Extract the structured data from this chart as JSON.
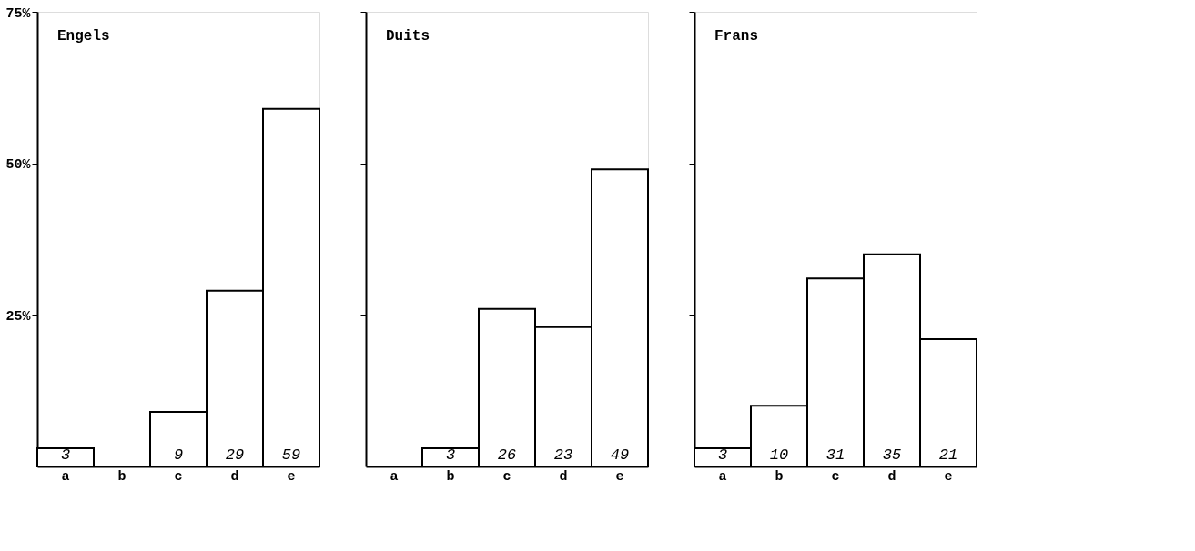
{
  "chart_data": [
    {
      "type": "bar",
      "title": "Engels",
      "categories": [
        "a",
        "b",
        "c",
        "d",
        "e"
      ],
      "values": [
        3,
        null,
        9,
        29,
        59
      ],
      "value_labels": [
        "3",
        null,
        "9",
        "29",
        "59"
      ],
      "ylim": [
        0,
        75
      ],
      "yticks": [
        {
          "value": 25,
          "label": "25%"
        },
        {
          "value": 50,
          "label": "50%"
        },
        {
          "value": 75,
          "label": "75%"
        }
      ],
      "color": "#ffffff",
      "grid": false
    },
    {
      "type": "bar",
      "title": "Duits",
      "categories": [
        "a",
        "b",
        "c",
        "d",
        "e"
      ],
      "values": [
        null,
        3,
        26,
        23,
        49
      ],
      "value_labels": [
        null,
        "3",
        "26",
        "23",
        "49"
      ],
      "ylim": [
        0,
        75
      ],
      "yticks": [
        {
          "value": 25,
          "label": null
        },
        {
          "value": 50,
          "label": null
        },
        {
          "value": 75,
          "label": null
        }
      ],
      "color": "#ffffff",
      "grid": false
    },
    {
      "type": "bar",
      "title": "Frans",
      "categories": [
        "a",
        "b",
        "c",
        "d",
        "e"
      ],
      "values": [
        3,
        10,
        31,
        35,
        21
      ],
      "value_labels": [
        "3",
        "10",
        "31",
        "35",
        "21"
      ],
      "ylim": [
        0,
        75
      ],
      "yticks": [
        {
          "value": 25,
          "label": null
        },
        {
          "value": 50,
          "label": null
        },
        {
          "value": 75,
          "label": null
        }
      ],
      "color": "#ffffff",
      "grid": false
    }
  ]
}
